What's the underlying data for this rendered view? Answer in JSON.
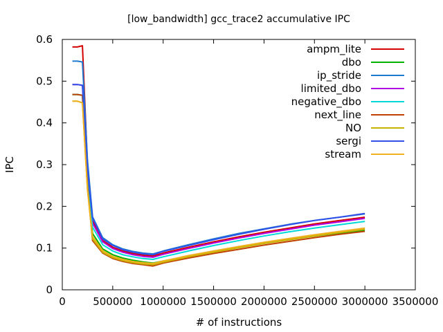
{
  "chart_data": {
    "type": "line",
    "title": "[low_bandwidth] gcc_trace2 accumulative IPC",
    "xlabel": "# of instructions",
    "ylabel": "IPC",
    "xlim": [
      0,
      3500000
    ],
    "ylim": [
      0,
      0.6
    ],
    "xticks": [
      0,
      500000,
      1000000,
      1500000,
      2000000,
      2500000,
      3000000,
      3500000
    ],
    "xtick_labels": [
      "0",
      "500000",
      "1000000",
      "1500000",
      "2000000",
      "2500000",
      "3000000",
      "3500000"
    ],
    "yticks": [
      0,
      0.1,
      0.2,
      0.3,
      0.4,
      0.5,
      0.6
    ],
    "ytick_labels": [
      "0",
      "0.1",
      "0.2",
      "0.3",
      "0.4",
      "0.5",
      "0.6"
    ],
    "grid": false,
    "legend_position": "top-right",
    "x": [
      100000,
      150000,
      200000,
      250000,
      300000,
      400000,
      500000,
      600000,
      700000,
      800000,
      900000,
      1000000,
      1250000,
      1500000,
      1750000,
      2000000,
      2250000,
      2500000,
      2750000,
      3000000
    ],
    "series": [
      {
        "name": "ampm_lite",
        "color": "#d50000",
        "values": [
          0.582,
          0.582,
          0.585,
          0.3,
          0.165,
          0.118,
          0.102,
          0.093,
          0.087,
          0.083,
          0.081,
          0.088,
          0.102,
          0.115,
          0.127,
          0.138,
          0.148,
          0.158,
          0.166,
          0.174
        ]
      },
      {
        "name": "dbo",
        "color": "#00b000",
        "values": [
          0.468,
          0.468,
          0.466,
          0.25,
          0.135,
          0.098,
          0.084,
          0.076,
          0.071,
          0.067,
          0.064,
          0.069,
          0.081,
          0.093,
          0.103,
          0.112,
          0.121,
          0.129,
          0.136,
          0.143
        ]
      },
      {
        "name": "ip_stride",
        "color": "#1e78d0",
        "values": [
          0.548,
          0.548,
          0.546,
          0.31,
          0.175,
          0.125,
          0.108,
          0.098,
          0.092,
          0.088,
          0.086,
          0.093,
          0.108,
          0.122,
          0.135,
          0.146,
          0.157,
          0.166,
          0.174,
          0.182
        ]
      },
      {
        "name": "limited_dbo",
        "color": "#b000e0",
        "values": [
          0.492,
          0.492,
          0.49,
          0.28,
          0.16,
          0.115,
          0.099,
          0.09,
          0.084,
          0.08,
          0.078,
          0.085,
          0.099,
          0.112,
          0.124,
          0.135,
          0.145,
          0.155,
          0.163,
          0.171
        ]
      },
      {
        "name": "negative_dbo",
        "color": "#00d8d8",
        "values": [
          0.468,
          0.468,
          0.466,
          0.26,
          0.15,
          0.108,
          0.093,
          0.084,
          0.079,
          0.075,
          0.073,
          0.079,
          0.093,
          0.106,
          0.118,
          0.129,
          0.139,
          0.148,
          0.156,
          0.164
        ]
      },
      {
        "name": "next_line",
        "color": "#c04000",
        "values": [
          0.468,
          0.468,
          0.466,
          0.25,
          0.118,
          0.088,
          0.075,
          0.068,
          0.063,
          0.06,
          0.057,
          0.064,
          0.076,
          0.087,
          0.097,
          0.107,
          0.116,
          0.125,
          0.133,
          0.14
        ]
      },
      {
        "name": "NO",
        "color": "#c8b400",
        "values": [
          0.452,
          0.452,
          0.448,
          0.24,
          0.122,
          0.09,
          0.077,
          0.07,
          0.065,
          0.062,
          0.06,
          0.066,
          0.079,
          0.09,
          0.101,
          0.111,
          0.12,
          0.129,
          0.137,
          0.145
        ]
      },
      {
        "name": "sergi",
        "color": "#3050e8",
        "values": [
          0.492,
          0.492,
          0.49,
          0.29,
          0.172,
          0.122,
          0.106,
          0.096,
          0.09,
          0.086,
          0.084,
          0.092,
          0.106,
          0.12,
          0.133,
          0.145,
          0.156,
          0.166,
          0.174,
          0.183
        ]
      },
      {
        "name": "stream",
        "color": "#f0b020",
        "values": [
          0.452,
          0.452,
          0.448,
          0.24,
          0.128,
          0.094,
          0.08,
          0.073,
          0.068,
          0.065,
          0.063,
          0.069,
          0.082,
          0.093,
          0.104,
          0.114,
          0.123,
          0.132,
          0.14,
          0.148
        ]
      }
    ]
  }
}
